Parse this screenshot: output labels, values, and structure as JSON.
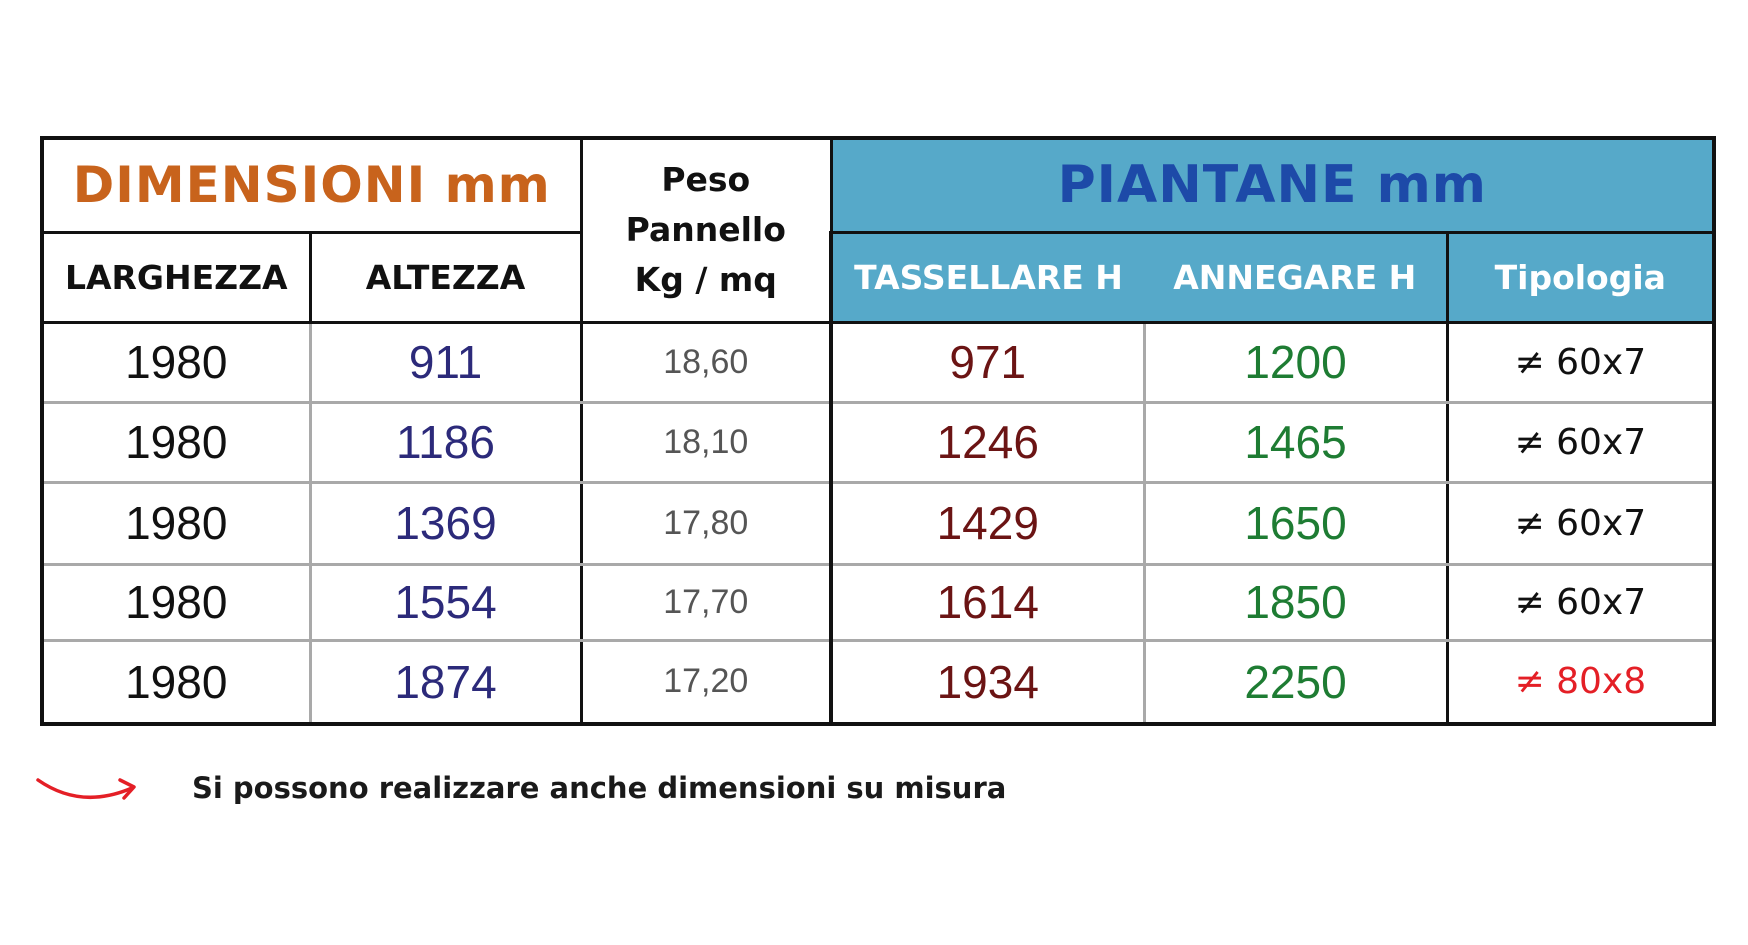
{
  "table": {
    "dimensioni_title": "DIMENSIONI mm",
    "peso_header": [
      "Peso",
      "Pannello",
      "Kg / mq"
    ],
    "piantane_title": "PIANTANE mm",
    "columns": {
      "larghezza": "LARGHEZZA",
      "altezza": "ALTEZZA",
      "tassellare": "TASSELLARE H",
      "annegare": "ANNEGARE H",
      "tipologia": "Tipologia"
    },
    "rows": [
      {
        "larghezza": "1980",
        "altezza": "911",
        "peso": "18,60",
        "tassellare": "971",
        "annegare": "1200",
        "tipologia": "≠ 60x7"
      },
      {
        "larghezza": "1980",
        "altezza": "1186",
        "peso": "18,10",
        "tassellare": "1246",
        "annegare": "1465",
        "tipologia": "≠ 60x7"
      },
      {
        "larghezza": "1980",
        "altezza": "1369",
        "peso": "17,80",
        "tassellare": "1429",
        "annegare": "1650",
        "tipologia": "≠ 60x7"
      },
      {
        "larghezza": "1980",
        "altezza": "1554",
        "peso": "17,70",
        "tassellare": "1614",
        "annegare": "1850",
        "tipologia": "≠ 60x7"
      },
      {
        "larghezza": "1980",
        "altezza": "1874",
        "peso": "17,20",
        "tassellare": "1934",
        "annegare": "2250",
        "tipologia": "≠ 80x8"
      }
    ]
  },
  "colors": {
    "dimensioni_title": "#c8631c",
    "piantane_bg": "#56a9c9",
    "piantane_title": "#1d4aa8",
    "altezza_values": "#2c2a7a",
    "tassellare_values": "#6b1414",
    "annegare_values": "#1e7c33",
    "tipologia_highlight": "#e41f26"
  },
  "footnote": {
    "icon": "curved-arrow-icon",
    "text": "Si possono realizzare anche dimensioni su misura"
  }
}
